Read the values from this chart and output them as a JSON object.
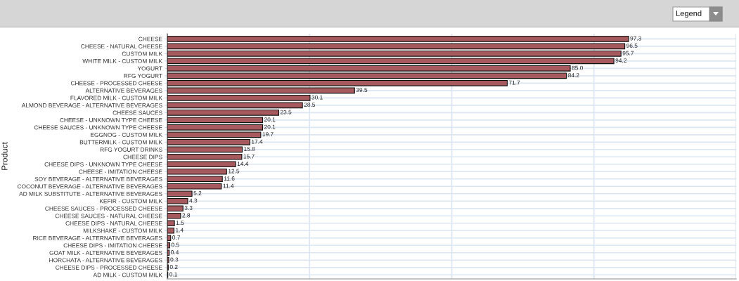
{
  "chart_data": {
    "type": "bar",
    "orientation": "horizontal",
    "ylabel": "Product",
    "categories": [
      "CHEESE",
      "CHEESE - NATURAL CHEESE",
      "CUSTOM MILK",
      "WHITE MILK - CUSTOM MILK",
      "YOGURT",
      "RFG YOGURT",
      "CHEESE - PROCESSED CHEESE",
      "ALTERNATIVE BEVERAGES",
      "FLAVORED MILK - CUSTOM MILK",
      "ALMOND BEVERAGE - ALTERNATIVE BEVERAGES",
      "CHEESE SAUCES",
      "CHEESE - UNKNOWN TYPE CHEESE",
      "CHEESE SAUCES - UNKNOWN TYPE CHEESE",
      "EGGNOG - CUSTOM MILK",
      "BUTTERMILK - CUSTOM MILK",
      "RFG YOGURT DRINKS",
      "CHEESE DIPS",
      "CHEESE DIPS - UNKNOWN TYPE CHEESE",
      "CHEESE - IMITATION CHEESE",
      "SOY BEVERAGE - ALTERNATIVE BEVERAGES",
      "COCONUT BEVERAGE - ALTERNATIVE BEVERAGES",
      "AD MILK SUBSTITUTE - ALTERNATIVE BEVERAGES",
      "KEFIR - CUSTOM MILK",
      "CHEESE SAUCES - PROCESSED CHEESE",
      "CHEESE SAUCES - NATURAL CHEESE",
      "CHEESE DIPS - NATURAL CHEESE",
      "MILKSHAKE - CUSTOM MILK",
      "RICE BEVERAGE - ALTERNATIVE BEVERAGES",
      "CHEESE DIPS - IMITATION CHEESE",
      "GOAT MILK - ALTERNATIVE BEVERAGES",
      "HORCHATA - ALTERNATIVE BEVERAGES",
      "CHEESE DIPS - PROCESSED CHEESE",
      "AD MILK - CUSTOM MILK"
    ],
    "values": [
      97.3,
      96.5,
      95.7,
      94.2,
      85.0,
      84.2,
      71.7,
      39.5,
      30.1,
      28.5,
      23.5,
      20.1,
      20.1,
      19.7,
      17.4,
      15.8,
      15.7,
      14.4,
      12.5,
      11.6,
      11.4,
      5.2,
      4.3,
      3.3,
      2.8,
      1.5,
      1.4,
      0.7,
      0.5,
      0.4,
      0.3,
      0.2,
      0.1
    ],
    "value_labels": [
      "97.3",
      "96.5",
      "95.7",
      "94.2",
      "85.0",
      "84.2",
      "71.7",
      "39.5",
      "30.1",
      "28.5",
      "23.5",
      "20.1",
      "20.1",
      "19.7",
      "17.4",
      "15.8",
      "15.7",
      "14.4",
      "12.5",
      "11.6",
      "11.4",
      "5.2",
      "4.3",
      "3.3",
      "2.8",
      "1.5",
      "1.4",
      "0.7",
      "0.5",
      "0.4",
      "0.3",
      "0.2",
      "0.1"
    ],
    "color": "#a65a5e",
    "xlim": [
      0,
      120
    ],
    "xticks": [
      {
        "value": 0,
        "label": null
      },
      {
        "value": 30,
        "label": null
      },
      {
        "value": 60,
        "label": null
      },
      {
        "value": 90,
        "label": null
      },
      {
        "value": 120,
        "label": null
      }
    ],
    "tick_labels": "y",
    "grid": true,
    "annotations": [
      "Legend"
    ]
  }
}
